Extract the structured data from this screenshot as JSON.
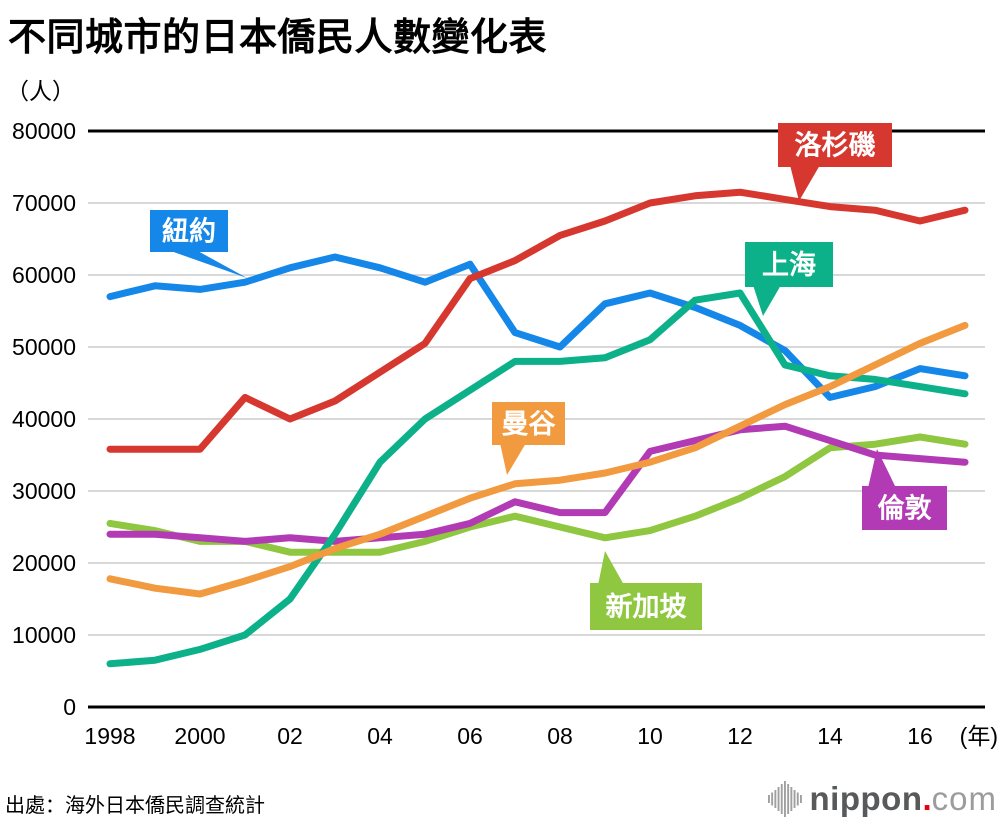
{
  "title": "不同城市的日本僑民人數變化表",
  "y_unit": "（人）",
  "source": "出處：海外日本僑民調查統計",
  "logo": {
    "nippon": "nippon",
    "dot": ".",
    "com": "com",
    "icon_color": "#a0a0a0",
    "nippon_color": "#58595b",
    "dot_color": "#e60012",
    "com_color": "#9c9c9c"
  },
  "chart_data": {
    "type": "line",
    "x": [
      1998,
      1999,
      2000,
      2001,
      2002,
      2003,
      2004,
      2005,
      2006,
      2007,
      2008,
      2009,
      2010,
      2011,
      2012,
      2013,
      2014,
      2015,
      2016,
      2017
    ],
    "x_ticks": [
      {
        "year": 1998,
        "label": "1998"
      },
      {
        "year": 2000,
        "label": "2000"
      },
      {
        "year": 2002,
        "label": "02"
      },
      {
        "year": 2004,
        "label": "04"
      },
      {
        "year": 2006,
        "label": "06"
      },
      {
        "year": 2008,
        "label": "08"
      },
      {
        "year": 2010,
        "label": "10"
      },
      {
        "year": 2012,
        "label": "12"
      },
      {
        "year": 2014,
        "label": "14"
      },
      {
        "year": 2016,
        "label": "16"
      }
    ],
    "x_axis_suffix": "(年)",
    "ylim": [
      0,
      80000
    ],
    "y_tick_step": 10000,
    "y_ticks": [
      0,
      10000,
      20000,
      30000,
      40000,
      50000,
      60000,
      70000,
      80000
    ],
    "grid": "horizontal-only",
    "grid_color": "#cccccc",
    "axis_color": "#000000",
    "legend_position": "inline-callouts",
    "series": [
      {
        "name": "新加坡",
        "color": "#8fc740",
        "values": [
          25500,
          24500,
          23000,
          23000,
          21500,
          21500,
          21500,
          23000,
          25000,
          26500,
          25000,
          23500,
          24500,
          26500,
          29000,
          32000,
          36000,
          36500,
          37500,
          36500
        ]
      },
      {
        "name": "倫敦",
        "color": "#b23ab4",
        "values": [
          24000,
          24000,
          23500,
          23000,
          23500,
          23000,
          23500,
          24000,
          25500,
          28500,
          27000,
          27000,
          35500,
          37000,
          38500,
          39000,
          37000,
          35000,
          34500,
          34000
        ]
      },
      {
        "name": "紐約",
        "color": "#1487e8",
        "values": [
          57000,
          58500,
          58000,
          59000,
          61000,
          62500,
          61000,
          59000,
          61500,
          52000,
          50000,
          56000,
          57500,
          55500,
          53000,
          49500,
          43000,
          44500,
          47000,
          46000
        ]
      },
      {
        "name": "上海",
        "color": "#0db189",
        "values": [
          6000,
          6500,
          8000,
          10000,
          15000,
          24000,
          34000,
          40000,
          44000,
          48000,
          48000,
          48500,
          51000,
          56500,
          57500,
          47500,
          46000,
          45500,
          44500,
          43500
        ]
      },
      {
        "name": "曼谷",
        "color": "#f29a3f",
        "values": [
          17800,
          16500,
          15700,
          17500,
          19500,
          22000,
          24000,
          26500,
          29000,
          31000,
          31500,
          32500,
          34000,
          36000,
          39000,
          42000,
          44500,
          47500,
          50500,
          53000
        ]
      },
      {
        "name": "洛杉磯",
        "color": "#d6372e",
        "values": [
          35800,
          35800,
          35800,
          43000,
          40000,
          42500,
          46500,
          50500,
          59500,
          62000,
          65500,
          67500,
          70000,
          71000,
          71500,
          70500,
          69500,
          69000,
          67500,
          69000
        ]
      }
    ]
  }
}
